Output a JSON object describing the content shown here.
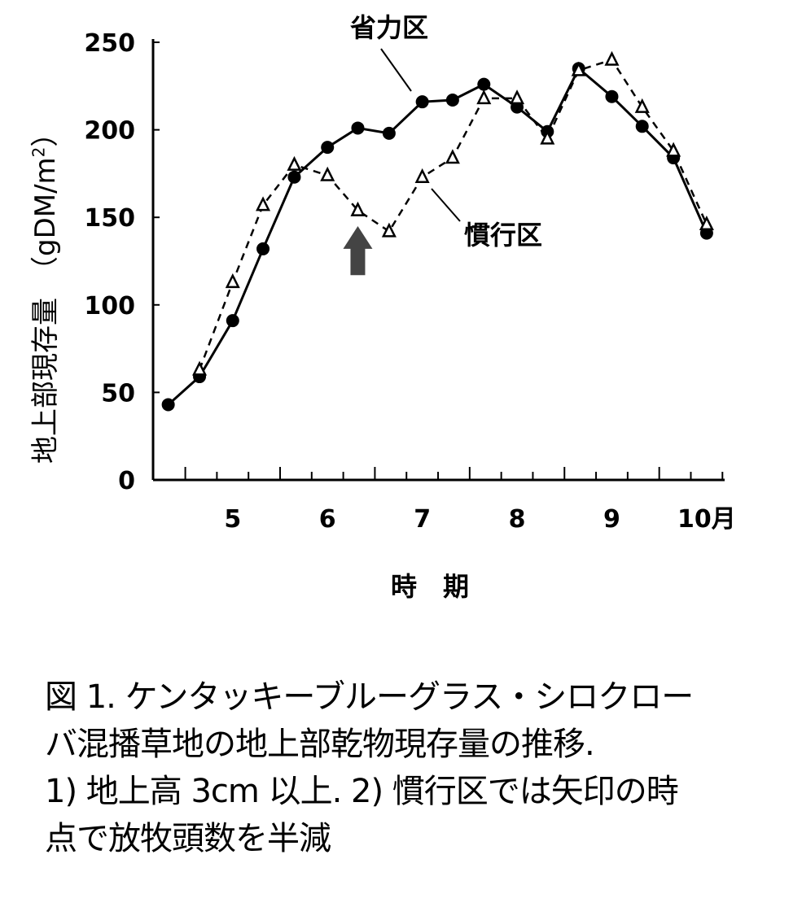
{
  "chart_data": {
    "type": "line",
    "title": "",
    "xlabel": "時　期",
    "ylabel_main": "地上部現存量",
    "ylabel_unit_open": "（gDM/m",
    "ylabel_unit_sup": "2",
    "ylabel_unit_close": "）",
    "ylim": [
      0,
      250
    ],
    "xlim": [
      4.16,
      10.19
    ],
    "yticks": [
      0,
      50,
      100,
      150,
      200,
      250
    ],
    "ytick_labels": [
      "0",
      "50",
      "100",
      "150",
      "200",
      "250"
    ],
    "xticks": [
      5,
      6,
      7,
      8,
      9,
      10
    ],
    "xtick_labels": [
      "5",
      "6",
      "7",
      "8",
      "9",
      "10月"
    ],
    "grid": false,
    "series": [
      {
        "name": "省力区",
        "style": "solid-circle",
        "x": [
          4.32,
          4.65,
          5.0,
          5.32,
          5.65,
          6.0,
          6.32,
          6.65,
          7.0,
          7.32,
          7.65,
          8.0,
          8.32,
          8.65,
          9.0,
          9.32,
          9.65,
          10.0
        ],
        "values": [
          43,
          59,
          91,
          132,
          173,
          190,
          201,
          198,
          216,
          217,
          226,
          213,
          199,
          235,
          219,
          202,
          184,
          141
        ]
      },
      {
        "name": "慣行区",
        "style": "dashed-triangle",
        "x": [
          4.65,
          5.0,
          5.32,
          5.65,
          6.0,
          6.32,
          6.65,
          7.0,
          7.32,
          7.65,
          8.0,
          8.32,
          8.65,
          9.0,
          9.32,
          9.65,
          10.0
        ],
        "values": [
          63,
          113,
          157,
          180,
          174,
          154,
          142,
          173,
          184,
          218,
          218,
          195,
          234,
          240,
          213,
          188,
          146
        ]
      }
    ],
    "annotations": {
      "arrow_at_x": 6.32,
      "arrow_color": "#444444"
    }
  },
  "caption": {
    "line1": "図 1. ケンタッキーブルーグラス・シロクロー",
    "line2": "バ混播草地の地上部乾物現存量の推移.",
    "line3": "1) 地上高 3cm 以上. 2) 慣行区では矢印の時",
    "line4": "点で放牧頭数を半減"
  }
}
